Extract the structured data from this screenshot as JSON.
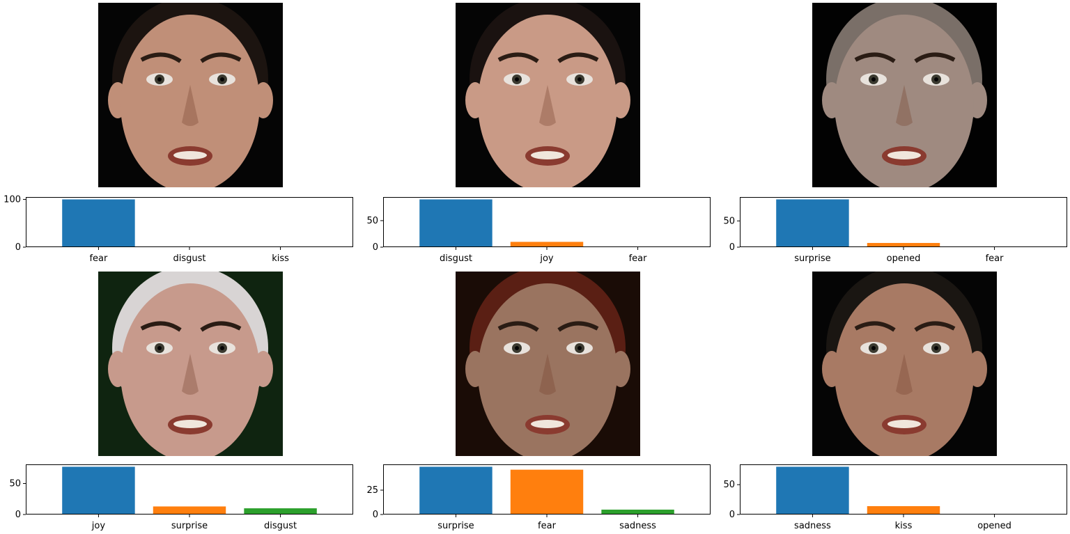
{
  "colors": {
    "series": [
      "#1f77b4",
      "#ff7f0e",
      "#2ca02c"
    ],
    "axis": "#000000",
    "photo_background": "#0b0b0b"
  },
  "panels": [
    {
      "image": {
        "subject": "woman with dark hair pulled back, open mouth",
        "skin": "#c08f78",
        "hair": "#1c1410",
        "background": "#050505"
      }
    },
    {
      "image": {
        "subject": "woman with dark hair, teeth clenched grimace",
        "skin": "#c99a86",
        "hair": "#1a1210",
        "background": "#050505"
      }
    },
    {
      "image": {
        "subject": "balding man, wide eyes and open mouth",
        "skin": "#9f8a80",
        "hair": "#7a6f68",
        "background": "#020202"
      }
    },
    {
      "image": {
        "subject": "elderly man with white hair, smiling",
        "skin": "#c79a8c",
        "hair": "#d8d4d4",
        "background": "#0f2410"
      }
    },
    {
      "image": {
        "subject": "woman with red hair, wide eyes, slight smile",
        "skin": "#9a7460",
        "hair": "#5a1f14",
        "background": "#1a0c06"
      }
    },
    {
      "image": {
        "subject": "young man with dark hair, neutral face, chin raised",
        "skin": "#a87a64",
        "hair": "#1a1612",
        "background": "#050505"
      }
    }
  ],
  "chart_data": [
    {
      "type": "bar",
      "categories": [
        "fear",
        "disgust",
        "kiss"
      ],
      "values": [
        100,
        0,
        0
      ],
      "ylim": [
        0,
        105
      ],
      "yticks": [
        "0",
        "100"
      ],
      "ytick_values": [
        0,
        100
      ]
    },
    {
      "type": "bar",
      "categories": [
        "disgust",
        "joy",
        "fear"
      ],
      "values": [
        90,
        10,
        0
      ],
      "ylim": [
        0,
        94.5
      ],
      "yticks": [
        "0",
        "50"
      ],
      "ytick_values": [
        0,
        50
      ]
    },
    {
      "type": "bar",
      "categories": [
        "surprise",
        "opened",
        "fear"
      ],
      "values": [
        91,
        8,
        0
      ],
      "ylim": [
        0,
        95.5
      ],
      "yticks": [
        "0",
        "50"
      ],
      "ytick_values": [
        0,
        50
      ]
    },
    {
      "type": "bar",
      "categories": [
        "joy",
        "surprise",
        "disgust"
      ],
      "values": [
        77,
        13,
        10
      ],
      "ylim": [
        0,
        80.85
      ],
      "yticks": [
        "0",
        "50"
      ],
      "ytick_values": [
        0,
        50
      ]
    },
    {
      "type": "bar",
      "categories": [
        "surprise",
        "fear",
        "sadness"
      ],
      "values": [
        49,
        46,
        5
      ],
      "ylim": [
        0,
        51.45
      ],
      "yticks": [
        "0",
        "25"
      ],
      "ytick_values": [
        0,
        25
      ]
    },
    {
      "type": "bar",
      "categories": [
        "sadness",
        "kiss",
        "opened"
      ],
      "values": [
        80,
        14,
        1
      ],
      "ylim": [
        0,
        84
      ],
      "yticks": [
        "0",
        "50"
      ],
      "ytick_values": [
        0,
        50
      ]
    }
  ]
}
